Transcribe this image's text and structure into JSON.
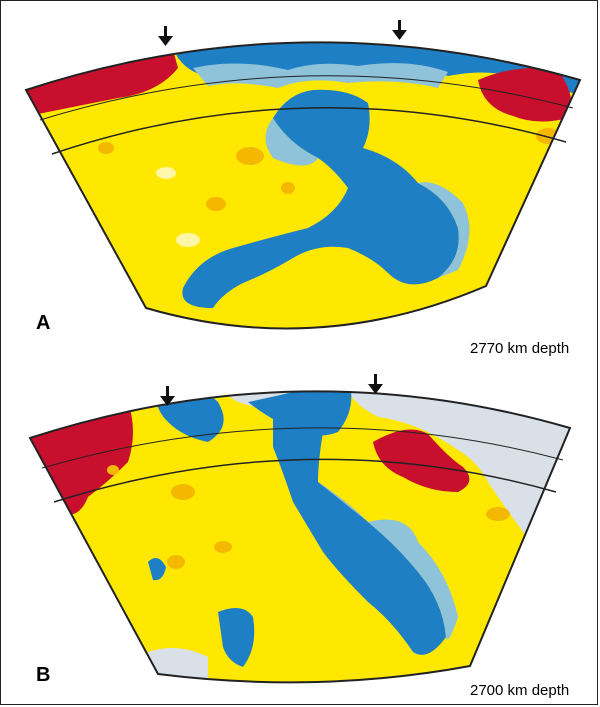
{
  "panels": [
    {
      "letter": "A",
      "depth": "2770 km depth"
    },
    {
      "letter": "B",
      "depth": "2700 km depth"
    }
  ],
  "colors": {
    "red": "#c8102e",
    "blue": "#1f7fc4",
    "light_blue": "#8ec3d9",
    "yellow": "#ffe800",
    "orange": "#f5b800",
    "grey": "#d9e0e8",
    "outline": "#222222"
  }
}
